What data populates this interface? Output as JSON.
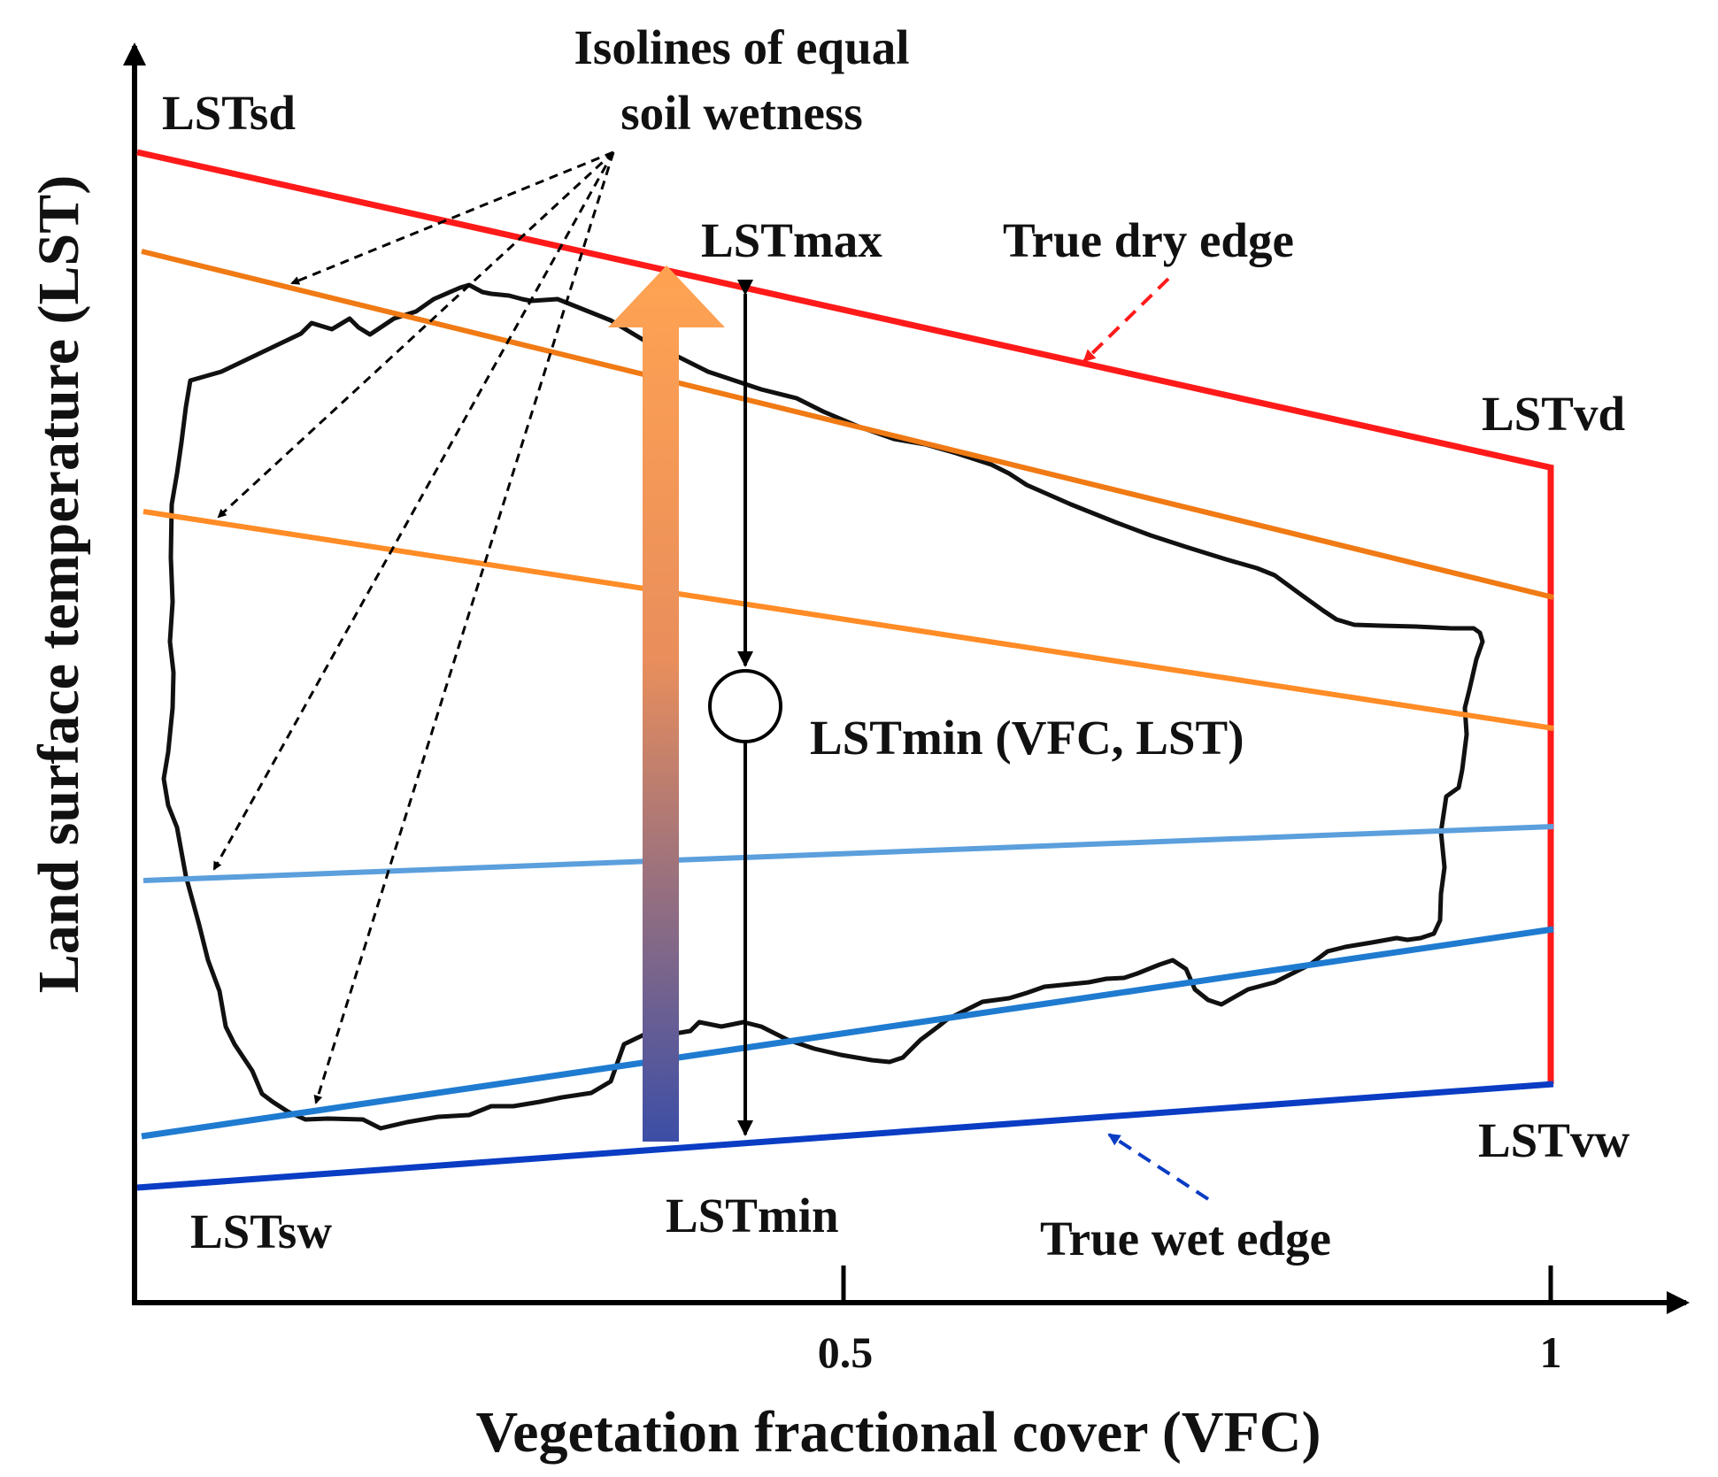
{
  "title_annotation": {
    "line1": "Isolines of equal",
    "line2": "soil wetness"
  },
  "axes": {
    "x_label": "Vegetation fractional cover (VFC)",
    "y_label": "Land surface temperature (LST)",
    "x_ticks": [
      "0.5",
      "1"
    ]
  },
  "labels": {
    "lst_sd": "LSTsd",
    "lst_max": "LSTmax",
    "true_dry_edge": "True dry edge",
    "lst_vd": "LSTvd",
    "lst_min_point": "LSTmin (VFC, LST)",
    "lst_vw": "LSTvw",
    "lst_sw": "LSTsw",
    "lst_min": "LSTmin",
    "true_wet_edge": "True wet edge"
  },
  "colors": {
    "dry_edge": "#ff1a1a",
    "isoline_dry_1": "#f07a14",
    "isoline_dry_2": "#ff8c26",
    "isoline_wet_1": "#5b9fdc",
    "isoline_wet_2": "#1f7bd0",
    "wet_edge": "#0a3cc4",
    "arrow_top": "#ffa352",
    "arrow_bottom": "#3c4ea6"
  }
}
